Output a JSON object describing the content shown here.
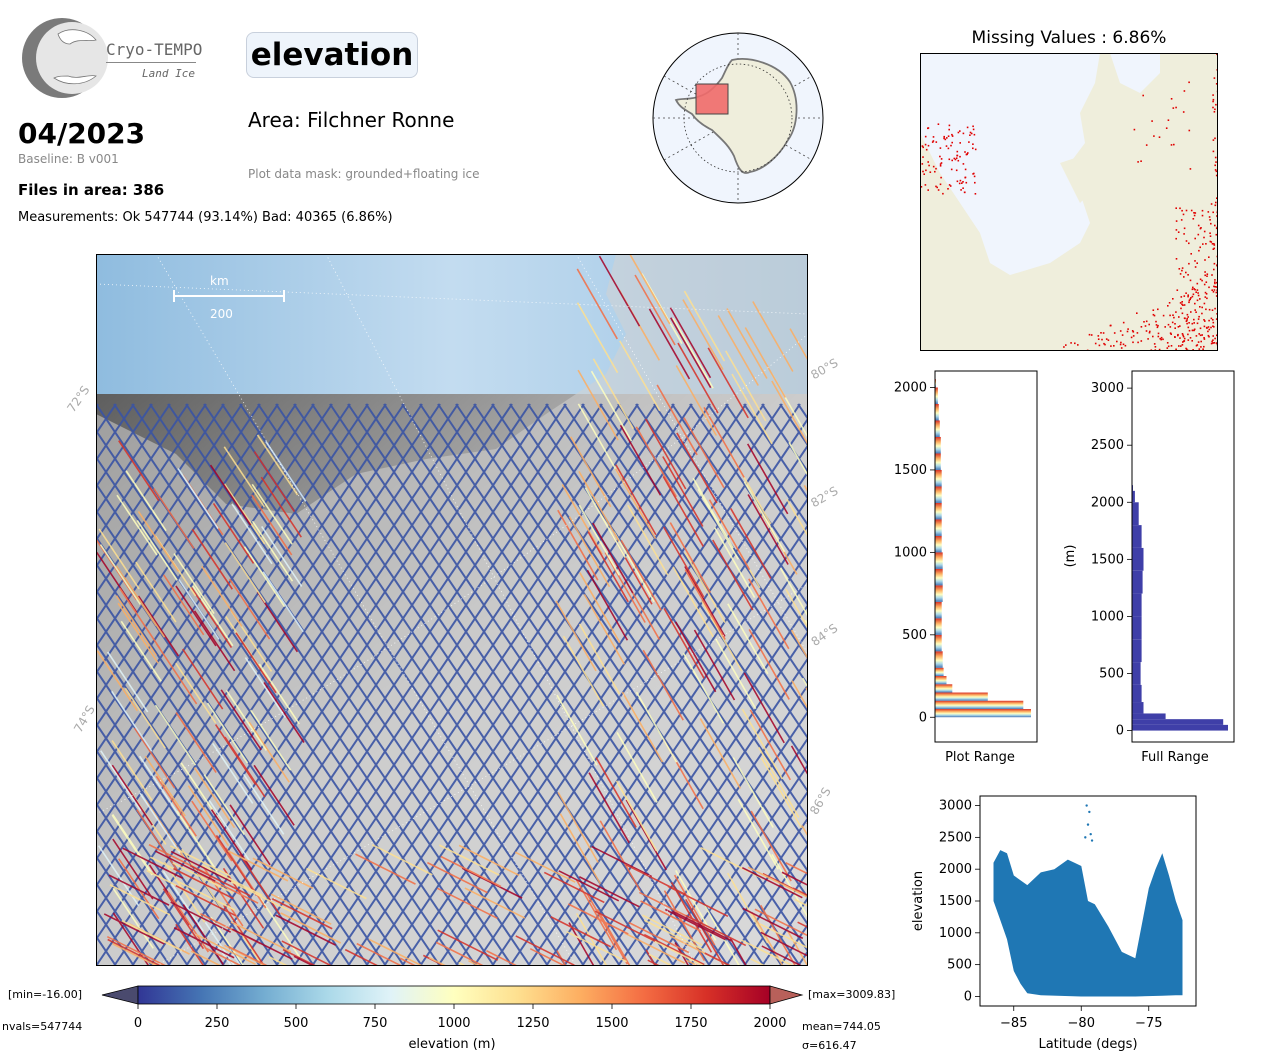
{
  "header": {
    "logo_title": "Cryo-TEMPO",
    "logo_subtitle": "Land Ice",
    "date": "04/2023",
    "baseline": "Baseline: B v001",
    "files": "Files in area: 386",
    "measurements": "Measurements: Ok 547744 (93.14%) Bad: 40365 (6.86%)",
    "parameter": "elevation",
    "area": "Area: Filchner Ronne",
    "mask": "Plot data mask: grounded+floating ice"
  },
  "map": {
    "scale_unit": "km",
    "scale_value": "200",
    "lat_labels": [
      "72°S",
      "74°S",
      "80°S",
      "82°S",
      "84°S",
      "86°S"
    ]
  },
  "colorbar": {
    "label": "elevation (m)",
    "ticks": [
      "0",
      "250",
      "500",
      "750",
      "1000",
      "1250",
      "1500",
      "1750",
      "2000"
    ],
    "min_label": "[min=-16.00]",
    "max_label": "[max=3009.83]",
    "nvals": "nvals=547744",
    "mean": "mean=744.05",
    "sigma": "σ=616.47",
    "colors": [
      "#313695",
      "#4575b4",
      "#74add1",
      "#abd9e9",
      "#e0f3f8",
      "#ffffbf",
      "#fee090",
      "#fdae61",
      "#f46d43",
      "#d73027",
      "#a50026"
    ]
  },
  "missing": {
    "title": "Missing Values : 6.86%"
  },
  "chart_data": [
    {
      "type": "bar",
      "orientation": "horizontal",
      "xlabel": "Plot Range",
      "ylabel": "",
      "ylim": [
        -150,
        2100
      ],
      "yticks": [
        "0",
        "500",
        "1000",
        "1500",
        "2000"
      ],
      "bins": [
        [
          0,
          1.0
        ],
        [
          50,
          0.92
        ],
        [
          100,
          0.55
        ],
        [
          150,
          0.18
        ],
        [
          200,
          0.12
        ],
        [
          250,
          0.09
        ],
        [
          300,
          0.08
        ],
        [
          400,
          0.07
        ],
        [
          500,
          0.07
        ],
        [
          600,
          0.07
        ],
        [
          700,
          0.08
        ],
        [
          800,
          0.08
        ],
        [
          900,
          0.08
        ],
        [
          1000,
          0.07
        ],
        [
          1100,
          0.07
        ],
        [
          1200,
          0.07
        ],
        [
          1300,
          0.07
        ],
        [
          1400,
          0.07
        ],
        [
          1500,
          0.06
        ],
        [
          1600,
          0.06
        ],
        [
          1700,
          0.05
        ],
        [
          1800,
          0.04
        ],
        [
          1900,
          0.03
        ],
        [
          2000,
          0.01
        ]
      ]
    },
    {
      "type": "bar",
      "orientation": "horizontal",
      "xlabel": "Full Range",
      "ylabel": "(m)",
      "ylim": [
        -100,
        3150
      ],
      "yticks": [
        "0",
        "500",
        "1000",
        "1500",
        "2000",
        "2500",
        "3000"
      ],
      "bins": [
        [
          0,
          1.0
        ],
        [
          50,
          0.95
        ],
        [
          100,
          0.35
        ],
        [
          150,
          0.12
        ],
        [
          250,
          0.1
        ],
        [
          400,
          0.09
        ],
        [
          600,
          0.1
        ],
        [
          800,
          0.1
        ],
        [
          1000,
          0.1
        ],
        [
          1200,
          0.11
        ],
        [
          1400,
          0.12
        ],
        [
          1600,
          0.1
        ],
        [
          1800,
          0.07
        ],
        [
          2000,
          0.03
        ],
        [
          2100,
          0.01
        ]
      ]
    },
    {
      "type": "scatter",
      "xlabel": "Latitude (degs)",
      "ylabel": "elevation",
      "xlim": [
        -87.5,
        -71.5
      ],
      "ylim": [
        -150,
        3150
      ],
      "xticks": [
        "−85",
        "−80",
        "−75"
      ],
      "yticks": [
        "0",
        "500",
        "1000",
        "1500",
        "2000",
        "2500",
        "3000"
      ],
      "upper_envelope": [
        [
          -86.5,
          2100
        ],
        [
          -86.0,
          2300
        ],
        [
          -85.5,
          2250
        ],
        [
          -85.0,
          1900
        ],
        [
          -84.0,
          1750
        ],
        [
          -83.0,
          1950
        ],
        [
          -82.0,
          2000
        ],
        [
          -81.0,
          2150
        ],
        [
          -80.5,
          2100
        ],
        [
          -80.0,
          2050
        ],
        [
          -79.5,
          1500
        ],
        [
          -79.0,
          1450
        ],
        [
          -78.0,
          1100
        ],
        [
          -77.0,
          700
        ],
        [
          -76.0,
          600
        ],
        [
          -75.0,
          1700
        ],
        [
          -74.5,
          2000
        ],
        [
          -74.0,
          2250
        ],
        [
          -73.5,
          1900
        ],
        [
          -73.0,
          1500
        ],
        [
          -72.5,
          1200
        ]
      ],
      "lower_envelope": [
        [
          -86.5,
          1500
        ],
        [
          -86.0,
          1200
        ],
        [
          -85.5,
          900
        ],
        [
          -85.0,
          400
        ],
        [
          -84.5,
          200
        ],
        [
          -84.0,
          50
        ],
        [
          -83.0,
          20
        ],
        [
          -80.0,
          0
        ],
        [
          -78.0,
          0
        ],
        [
          -76.0,
          0
        ],
        [
          -74.0,
          10
        ],
        [
          -73.0,
          20
        ],
        [
          -72.5,
          20
        ]
      ],
      "outliers": [
        [
          -79.6,
          3000
        ],
        [
          -79.4,
          2900
        ],
        [
          -79.5,
          2700
        ],
        [
          -79.3,
          2550
        ],
        [
          -79.7,
          2500
        ],
        [
          -79.2,
          2450
        ]
      ]
    }
  ]
}
